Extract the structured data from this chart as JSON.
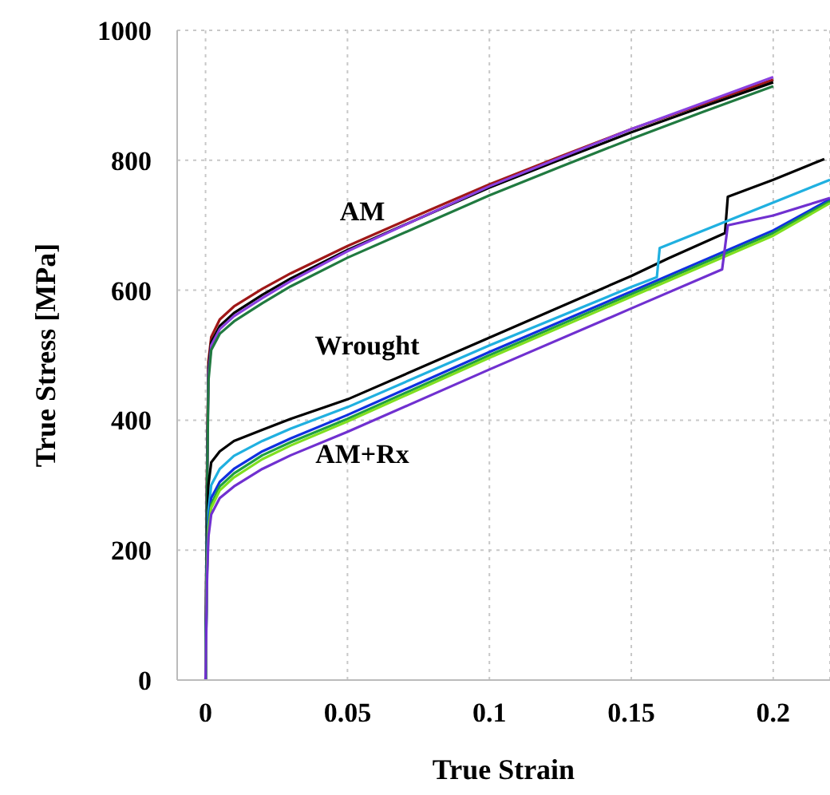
{
  "chart_data": {
    "type": "line",
    "xlabel": "True Strain",
    "ylabel": "True Stress [MPa]",
    "xlim": [
      -0.01,
      0.22
    ],
    "xticks": [
      0,
      0.05,
      0.1,
      0.15,
      0.2
    ],
    "ylim": [
      0,
      1000
    ],
    "yticks": [
      0,
      200,
      400,
      600,
      800,
      1000
    ],
    "grid": true,
    "line_style": "solid",
    "annotations": [
      "AM",
      "Wrought",
      "AM+Rx"
    ],
    "series": [
      {
        "color": "#a01818",
        "x": [
          0,
          0.0005,
          0.001,
          0.002,
          0.005,
          0.01,
          0.02,
          0.03,
          0.05,
          0.075,
          0.1,
          0.125,
          0.15,
          0.175,
          0.2
        ],
        "values": [
          0,
          320,
          490,
          528,
          555,
          575,
          602,
          626,
          668,
          716,
          763,
          806,
          848,
          886,
          924
        ]
      },
      {
        "color": "#000000",
        "x": [
          0,
          0.0005,
          0.001,
          0.002,
          0.005,
          0.01,
          0.02,
          0.03,
          0.05,
          0.075,
          0.1,
          0.125,
          0.15,
          0.175,
          0.2
        ],
        "values": [
          0,
          300,
          480,
          520,
          545,
          565,
          593,
          618,
          662,
          710,
          758,
          801,
          843,
          882,
          920
        ]
      },
      {
        "color": "#8a40e0",
        "x": [
          0,
          0.0005,
          0.001,
          0.002,
          0.005,
          0.01,
          0.02,
          0.03,
          0.05,
          0.075,
          0.1,
          0.125,
          0.15,
          0.175,
          0.2
        ],
        "values": [
          0,
          290,
          470,
          515,
          540,
          560,
          588,
          614,
          660,
          710,
          760,
          804,
          848,
          888,
          928
        ]
      },
      {
        "color": "#207a40",
        "x": [
          0,
          0.0005,
          0.001,
          0.002,
          0.005,
          0.01,
          0.02,
          0.03,
          0.05,
          0.075,
          0.1,
          0.125,
          0.15,
          0.175,
          0.2
        ],
        "values": [
          0,
          280,
          460,
          508,
          533,
          552,
          580,
          606,
          650,
          698,
          746,
          790,
          833,
          874,
          914
        ]
      },
      {
        "color": "#000000",
        "x": [
          0,
          0.0005,
          0.001,
          0.002,
          0.005,
          0.01,
          0.02,
          0.03,
          0.05,
          0.1,
          0.15,
          0.163,
          0.183,
          0.184,
          0.2,
          0.218
        ],
        "values": [
          0,
          200,
          300,
          335,
          352,
          368,
          385,
          402,
          432,
          527,
          622,
          649,
          688,
          744,
          770,
          802
        ]
      },
      {
        "color": "#20b0e0",
        "x": [
          0,
          0.0005,
          0.001,
          0.002,
          0.005,
          0.01,
          0.02,
          0.03,
          0.05,
          0.1,
          0.15,
          0.159,
          0.16,
          0.2,
          0.22
        ],
        "values": [
          0,
          180,
          260,
          300,
          325,
          345,
          368,
          387,
          420,
          515,
          605,
          620,
          665,
          735,
          770
        ]
      },
      {
        "color": "#1030e0",
        "x": [
          0,
          0.0005,
          0.001,
          0.002,
          0.005,
          0.01,
          0.02,
          0.03,
          0.05,
          0.1,
          0.15,
          0.2,
          0.22
        ],
        "values": [
          0,
          170,
          240,
          280,
          305,
          325,
          352,
          372,
          408,
          505,
          598,
          692,
          740
        ]
      },
      {
        "color": "#20a040",
        "x": [
          0,
          0.0005,
          0.001,
          0.002,
          0.005,
          0.01,
          0.02,
          0.03,
          0.05,
          0.1,
          0.15,
          0.2,
          0.22
        ],
        "values": [
          0,
          165,
          235,
          270,
          298,
          318,
          346,
          366,
          402,
          500,
          594,
          688,
          737
        ]
      },
      {
        "color": "#80e020",
        "x": [
          0,
          0.0005,
          0.001,
          0.002,
          0.005,
          0.01,
          0.02,
          0.03,
          0.05,
          0.1,
          0.15,
          0.2,
          0.22
        ],
        "values": [
          0,
          160,
          230,
          265,
          292,
          312,
          340,
          361,
          398,
          496,
          590,
          684,
          734
        ]
      },
      {
        "color": "#7030d0",
        "x": [
          0,
          0.0005,
          0.001,
          0.002,
          0.005,
          0.01,
          0.02,
          0.03,
          0.05,
          0.1,
          0.15,
          0.182,
          0.184,
          0.2,
          0.22
        ],
        "values": [
          0,
          150,
          220,
          255,
          280,
          298,
          325,
          346,
          382,
          478,
          572,
          632,
          700,
          715,
          742
        ]
      }
    ]
  }
}
